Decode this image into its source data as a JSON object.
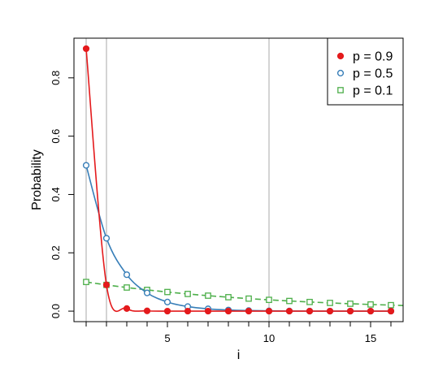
{
  "chart_data": {
    "type": "line",
    "title": "",
    "xlabel": "i",
    "ylabel": "Probability",
    "xlim": [
      0.4,
      16.6
    ],
    "ylim": [
      -0.036,
      0.936
    ],
    "xticks": [
      5,
      10,
      15
    ],
    "yticks": [
      0.0,
      0.2,
      0.4,
      0.6,
      0.8
    ],
    "ytick_labels": [
      "0.0",
      "0.2",
      "0.4",
      "0.6",
      "0.8"
    ],
    "vlines": [
      1,
      2,
      10
    ],
    "vline_color": "#bdbdbd",
    "grid": false,
    "legend_position": "top-right",
    "x": [
      1,
      2,
      3,
      4,
      5,
      6,
      7,
      8,
      9,
      10,
      11,
      12,
      13,
      14,
      15,
      16
    ],
    "series": [
      {
        "name": "p = 0.9",
        "color": "#e41a1c",
        "marker": "filled-circle",
        "line": "solid",
        "values": [
          0.9,
          0.09,
          0.009,
          0.0009,
          9e-05,
          9e-06,
          0.0,
          0.0,
          0.0,
          0.0,
          0.0,
          0.0,
          0.0,
          0.0,
          0.0,
          0.0
        ]
      },
      {
        "name": "p = 0.5",
        "color": "#377eb8",
        "marker": "open-circle",
        "line": "solid",
        "values": [
          0.5,
          0.25,
          0.125,
          0.0625,
          0.03125,
          0.015625,
          0.0078,
          0.0039,
          0.002,
          0.001,
          0.0005,
          0.0002,
          0.0001,
          0.0001,
          0.0,
          0.0
        ]
      },
      {
        "name": "p = 0.1",
        "color": "#4daf4a",
        "marker": "open-square",
        "line": "dashed",
        "values": [
          0.1,
          0.09,
          0.081,
          0.0729,
          0.0656,
          0.059,
          0.0531,
          0.0478,
          0.043,
          0.0387,
          0.0349,
          0.0314,
          0.0282,
          0.0254,
          0.0229,
          0.0206
        ]
      }
    ]
  }
}
